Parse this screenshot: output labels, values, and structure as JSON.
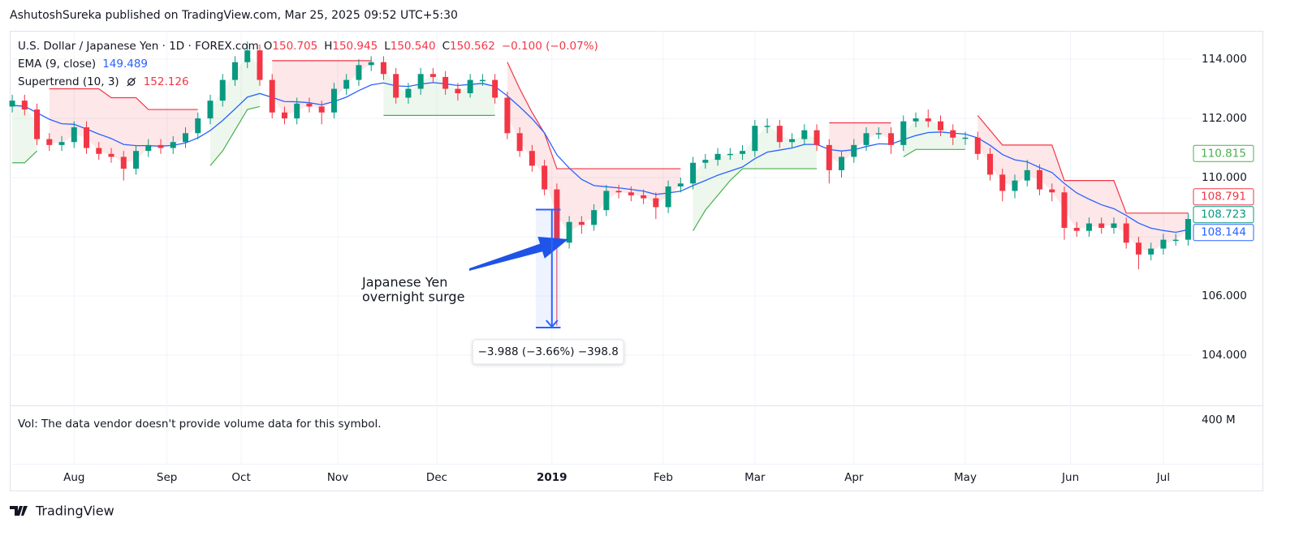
{
  "header": "AshutoshSureka published on TradingView.com, Mar 25, 2025 09:52 UTC+5:30",
  "footer": "TradingView",
  "chart_data": {
    "type": "candlestick",
    "symbol": "U.S. Dollar / Japanese Yen · 1D · FOREX.com",
    "ohlc": [
      {
        "key": "O",
        "value": "150.705"
      },
      {
        "key": "H",
        "value": "150.945"
      },
      {
        "key": "L",
        "value": "150.540"
      },
      {
        "key": "C",
        "value": "150.562"
      }
    ],
    "change": "−0.100 (−0.07%)",
    "up_color": "#089981",
    "down_color": "#f23645",
    "open": [
      112.4,
      112.6,
      112.3,
      111.3,
      111.1,
      111.2,
      111.7,
      111.0,
      110.8,
      110.7,
      110.3,
      110.9,
      111.1,
      111.0,
      111.2,
      111.5,
      112.0,
      112.6,
      113.3,
      113.9,
      114.3,
      113.3,
      112.2,
      112.0,
      112.5,
      112.4,
      112.2,
      113.0,
      113.3,
      113.8,
      113.9,
      113.5,
      112.7,
      113.0,
      113.5,
      113.4,
      113.0,
      112.85,
      113.3,
      113.3,
      112.7,
      111.5,
      110.9,
      110.4,
      109.6,
      107.8,
      108.5,
      108.4,
      108.9,
      109.55,
      109.5,
      109.4,
      109.3,
      109.0,
      109.7,
      109.8,
      110.5,
      110.6,
      110.8,
      110.8,
      110.9,
      111.75,
      111.75,
      111.2,
      111.3,
      111.6,
      111.1,
      110.25,
      110.7,
      111.1,
      111.5,
      111.5,
      111.1,
      111.9,
      112.0,
      111.9,
      111.6,
      111.35,
      111.35,
      110.8,
      110.1,
      109.55,
      109.9,
      110.25,
      109.6,
      109.5,
      108.3,
      108.2,
      108.45,
      108.3,
      108.45,
      107.8,
      107.4,
      107.6,
      107.9,
      107.9
    ],
    "high": [
      112.8,
      112.8,
      112.5,
      111.5,
      111.4,
      111.9,
      111.9,
      111.2,
      111.0,
      110.9,
      111.1,
      111.3,
      111.3,
      111.4,
      111.7,
      112.2,
      112.8,
      113.5,
      114.1,
      114.6,
      114.5,
      113.5,
      112.4,
      112.7,
      112.7,
      112.6,
      113.2,
      113.5,
      114.0,
      114.1,
      114.1,
      113.7,
      113.2,
      113.7,
      113.7,
      113.6,
      113.2,
      113.5,
      113.5,
      113.5,
      112.9,
      111.7,
      111.1,
      110.6,
      109.8,
      108.7,
      108.7,
      109.1,
      109.75,
      109.75,
      109.7,
      109.6,
      109.5,
      109.9,
      110.0,
      110.7,
      110.8,
      111.0,
      111.0,
      111.1,
      111.95,
      112.0,
      111.95,
      111.5,
      111.8,
      111.8,
      111.3,
      110.9,
      111.3,
      111.7,
      111.7,
      111.7,
      112.1,
      112.2,
      112.3,
      112.1,
      111.8,
      111.55,
      111.55,
      111.0,
      110.3,
      110.1,
      110.6,
      110.45,
      109.8,
      109.7,
      108.5,
      108.65,
      108.65,
      108.65,
      108.65,
      108.0,
      107.8,
      108.1,
      108.1,
      108.8
    ],
    "low": [
      112.2,
      112.1,
      111.1,
      110.9,
      110.9,
      111.0,
      110.8,
      110.6,
      110.5,
      109.9,
      110.1,
      110.7,
      110.8,
      110.8,
      111.0,
      111.3,
      111.8,
      112.4,
      113.1,
      113.7,
      113.1,
      112.0,
      111.8,
      111.8,
      112.2,
      111.8,
      112.0,
      112.8,
      113.1,
      113.6,
      113.3,
      112.5,
      112.5,
      112.8,
      113.2,
      112.8,
      112.6,
      112.7,
      113.1,
      112.5,
      111.3,
      110.7,
      110.2,
      109.4,
      105.0,
      107.6,
      108.1,
      108.2,
      108.7,
      109.3,
      109.2,
      109.1,
      108.6,
      108.8,
      109.5,
      109.6,
      110.3,
      110.4,
      110.6,
      110.6,
      110.7,
      111.5,
      111.0,
      111.0,
      111.1,
      110.9,
      109.8,
      110.0,
      110.5,
      110.9,
      111.3,
      110.8,
      110.9,
      111.7,
      111.7,
      111.4,
      111.1,
      111.1,
      110.6,
      109.9,
      109.2,
      109.3,
      109.7,
      109.4,
      109.2,
      107.9,
      108.0,
      108.0,
      108.1,
      108.1,
      107.6,
      106.9,
      107.2,
      107.4,
      107.7,
      107.7
    ],
    "close": [
      112.6,
      112.3,
      111.3,
      111.1,
      111.2,
      111.7,
      111.0,
      110.8,
      110.7,
      110.3,
      110.9,
      111.1,
      111.0,
      111.2,
      111.5,
      112.0,
      112.6,
      113.3,
      113.9,
      114.3,
      113.3,
      112.2,
      112.0,
      112.5,
      112.4,
      112.2,
      113.0,
      113.3,
      113.8,
      113.9,
      113.5,
      112.7,
      113.0,
      113.5,
      113.4,
      113.0,
      112.85,
      113.3,
      113.3,
      112.7,
      111.5,
      110.9,
      110.4,
      109.6,
      107.8,
      108.5,
      108.4,
      108.9,
      109.55,
      109.5,
      109.4,
      109.3,
      109.0,
      109.7,
      109.8,
      110.5,
      110.6,
      110.8,
      110.8,
      110.9,
      111.75,
      111.75,
      111.2,
      111.3,
      111.6,
      111.1,
      110.25,
      110.7,
      111.1,
      111.5,
      111.5,
      111.1,
      111.9,
      112.0,
      111.9,
      111.6,
      111.35,
      111.35,
      110.8,
      110.1,
      109.55,
      109.9,
      110.25,
      109.6,
      109.5,
      108.3,
      108.2,
      108.45,
      108.3,
      108.45,
      107.8,
      107.4,
      107.6,
      107.9,
      107.9,
      108.6
    ],
    "ema": {
      "name": "EMA (9, close)",
      "legend_value": "149.489",
      "color": "#2962ff",
      "values": [
        112.44,
        112.41,
        112.19,
        111.97,
        111.82,
        111.8,
        111.64,
        111.47,
        111.32,
        111.12,
        111.08,
        111.08,
        111.06,
        111.09,
        111.17,
        111.34,
        111.59,
        111.93,
        112.32,
        112.72,
        112.84,
        112.71,
        112.57,
        112.56,
        112.53,
        112.46,
        112.57,
        112.72,
        112.94,
        113.13,
        113.2,
        113.1,
        113.08,
        113.16,
        113.21,
        113.17,
        113.11,
        113.15,
        113.18,
        113.08,
        112.76,
        112.39,
        111.99,
        111.51,
        110.77,
        110.32,
        109.94,
        109.73,
        109.69,
        109.65,
        109.6,
        109.54,
        109.43,
        109.48,
        109.54,
        109.73,
        109.9,
        110.08,
        110.22,
        110.36,
        110.64,
        110.86,
        110.93,
        111.0,
        111.12,
        111.12,
        110.95,
        110.9,
        110.94,
        111.05,
        111.14,
        111.13,
        111.28,
        111.42,
        111.52,
        111.54,
        111.5,
        111.47,
        111.34,
        111.09,
        110.78,
        110.6,
        110.53,
        110.34,
        110.17,
        109.8,
        109.48,
        109.27,
        109.08,
        108.95,
        108.72,
        108.46,
        108.29,
        108.21,
        108.15,
        108.24
      ]
    },
    "supertrend": {
      "name": "Supertrend (10, 3)",
      "legend_value": "152.126",
      "legend_color": "#f23645",
      "up": {
        "color": "#4caf50",
        "values": [
          110.5,
          110.5,
          110.9,
          null,
          null,
          null,
          null,
          null,
          null,
          null,
          null,
          null,
          null,
          null,
          null,
          null,
          110.4,
          110.9,
          111.6,
          112.3,
          112.4,
          null,
          null,
          null,
          null,
          null,
          null,
          null,
          null,
          null,
          112.1,
          112.1,
          112.1,
          112.1,
          112.1,
          112.1,
          112.1,
          112.1,
          112.1,
          112.1,
          null,
          null,
          null,
          null,
          null,
          null,
          null,
          null,
          null,
          null,
          null,
          null,
          null,
          null,
          null,
          108.2,
          108.9,
          109.4,
          109.9,
          110.3,
          110.3,
          110.3,
          110.3,
          110.3,
          110.3,
          110.3,
          null,
          null,
          null,
          null,
          null,
          null,
          110.7,
          110.95,
          110.95,
          110.95,
          110.95,
          110.95,
          null,
          null,
          null,
          null,
          null,
          null,
          null,
          null,
          null,
          null,
          null,
          null,
          null,
          null,
          null,
          null,
          null,
          null
        ]
      },
      "down": {
        "color": "#f23645",
        "values": [
          null,
          null,
          null,
          113.0,
          113.0,
          113.0,
          113.0,
          113.0,
          112.7,
          112.7,
          112.7,
          112.3,
          112.3,
          112.3,
          112.3,
          112.3,
          null,
          null,
          null,
          null,
          null,
          113.95,
          113.95,
          113.95,
          113.95,
          113.95,
          113.95,
          113.95,
          113.95,
          113.95,
          null,
          null,
          null,
          null,
          null,
          null,
          null,
          null,
          null,
          null,
          113.9,
          113.0,
          112.2,
          111.5,
          110.3,
          110.3,
          110.3,
          110.3,
          110.3,
          110.3,
          110.3,
          110.3,
          110.3,
          110.3,
          110.3,
          null,
          null,
          null,
          null,
          null,
          null,
          null,
          null,
          null,
          null,
          null,
          111.85,
          111.85,
          111.85,
          111.85,
          111.85,
          111.85,
          null,
          null,
          null,
          null,
          null,
          null,
          112.1,
          111.6,
          111.1,
          111.1,
          111.1,
          111.1,
          111.1,
          109.9,
          109.9,
          109.9,
          109.9,
          109.9,
          108.8,
          108.8,
          108.8,
          108.8,
          108.8,
          108.8
        ]
      }
    },
    "price_labels": [
      {
        "value": 110.815,
        "color": "#4caf50"
      },
      {
        "value": 108.791,
        "color": "#f23645"
      },
      {
        "value": 108.723,
        "color": "#089981"
      },
      {
        "value": 108.144,
        "color": "#2962ff"
      }
    ],
    "measure": {
      "from": 108.918,
      "to": 104.93,
      "label": "−3.988 (−3.66%) −398.8",
      "color": "#2962ff"
    },
    "annotation": [
      "Japanese Yen",
      "overnight surge"
    ],
    "volume_note": "Vol: The data vendor doesn't provide volume data for this symbol.",
    "volume_tick": "400 M",
    "xlim": [
      -0.2,
      95.3
    ],
    "xticks": [
      {
        "value": 5,
        "label": "Aug"
      },
      {
        "value": 12.5,
        "label": "Sep"
      },
      {
        "value": 18.5,
        "label": "Oct"
      },
      {
        "value": 26.3,
        "label": "Nov"
      },
      {
        "value": 34.3,
        "label": "Dec"
      },
      {
        "value": 43.6,
        "label": "2019"
      },
      {
        "value": 52.6,
        "label": "Feb"
      },
      {
        "value": 60,
        "label": "Mar"
      },
      {
        "value": 68,
        "label": "Apr"
      },
      {
        "value": 77,
        "label": "May"
      },
      {
        "value": 85.5,
        "label": "Jun"
      },
      {
        "value": 93,
        "label": "Jul"
      }
    ],
    "ylim": [
      102.3,
      114.96
    ],
    "yticks": [
      {
        "value": 104,
        "label": "104.000"
      },
      {
        "value": 106,
        "label": "106.000"
      },
      {
        "value": 108,
        "label": "108.000"
      },
      {
        "value": 110,
        "label": "110.000"
      },
      {
        "value": 112,
        "label": "112.000"
      },
      {
        "value": 114,
        "label": "114.000"
      }
    ],
    "grid": true
  }
}
